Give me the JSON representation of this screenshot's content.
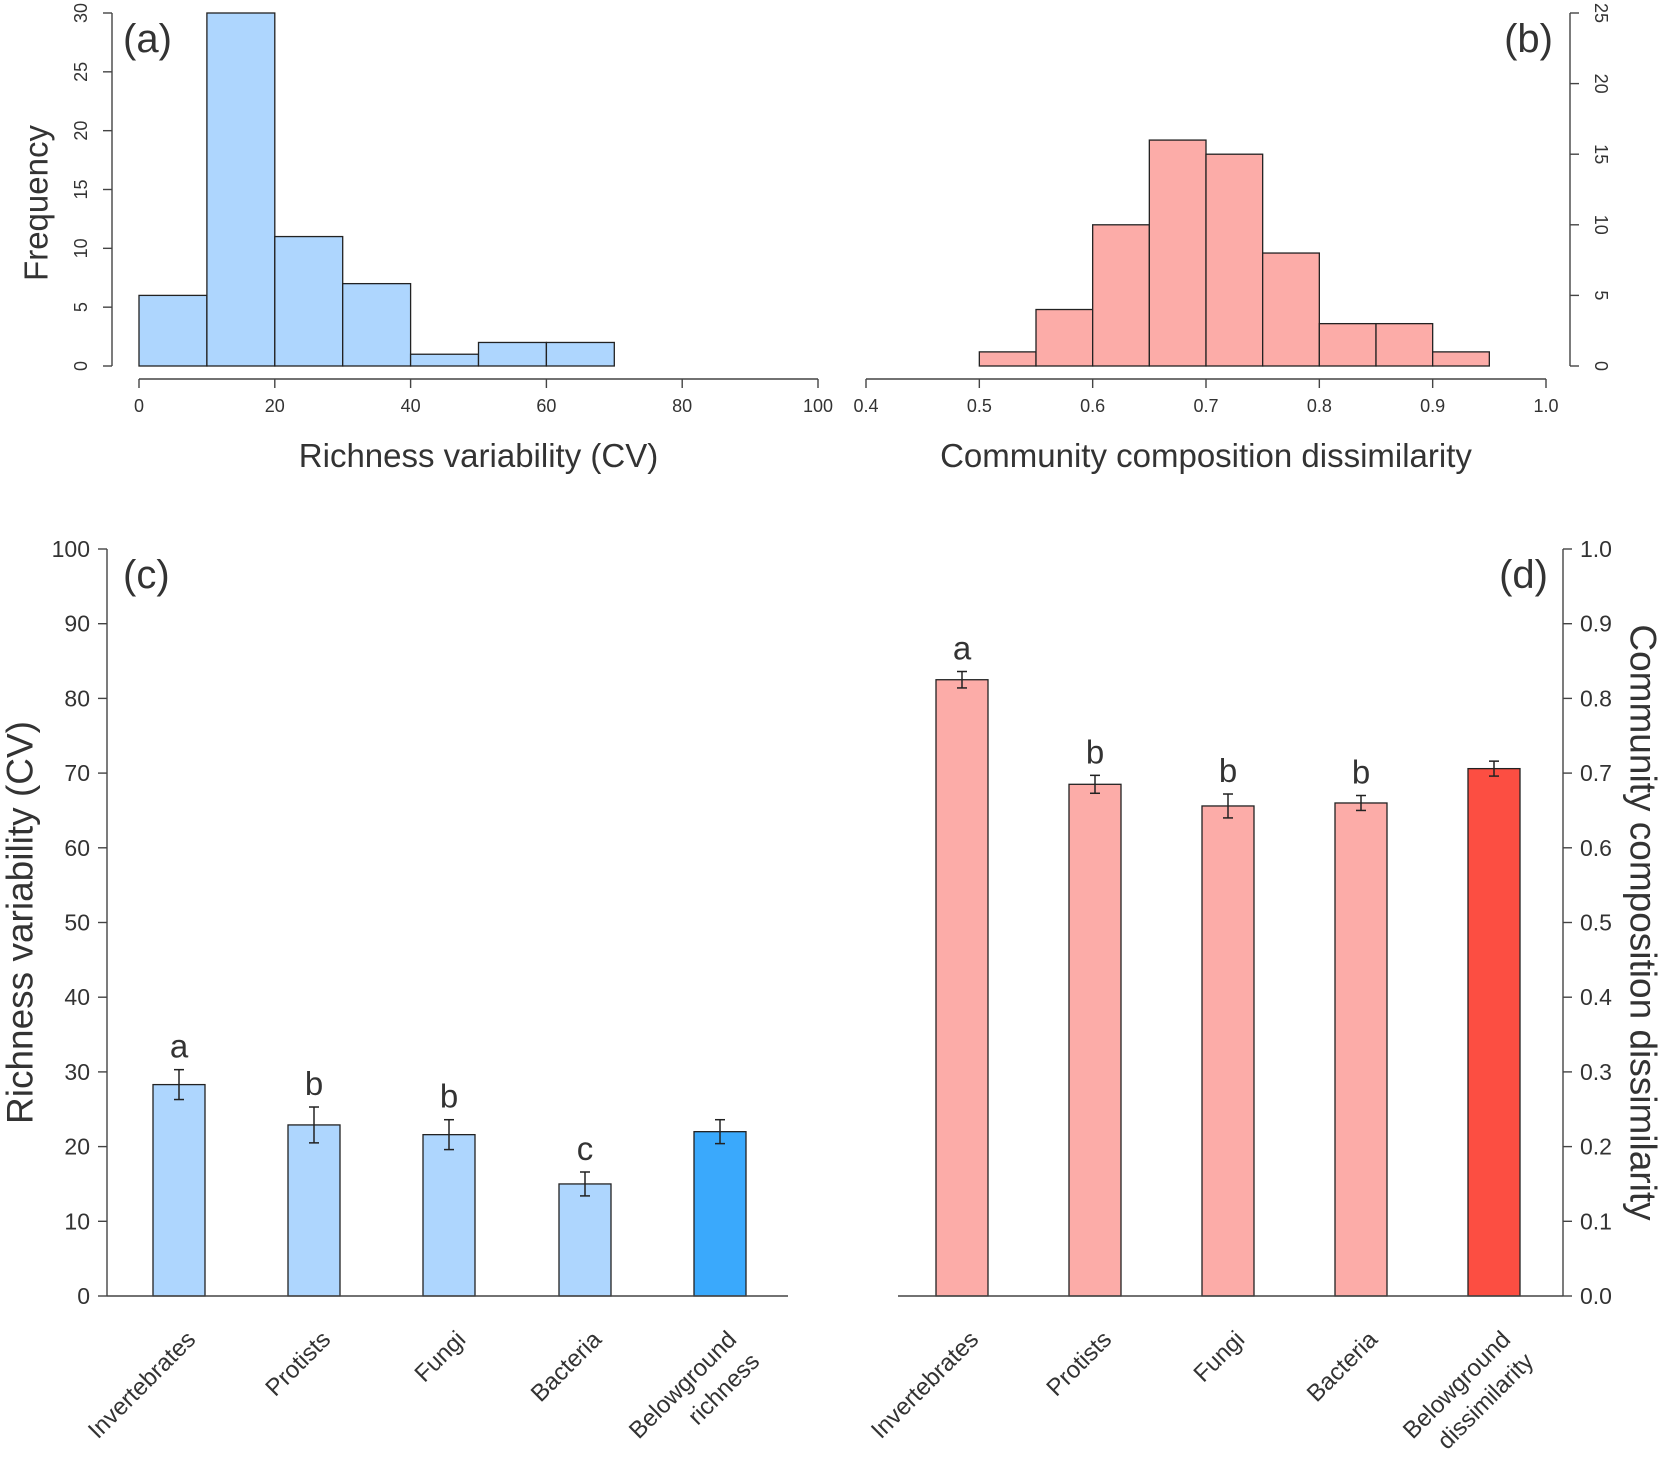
{
  "colors": {
    "light_blue": "#AED6FE",
    "blue": "#3AA9FC",
    "light_red": "#FCACA8",
    "red": "#FC4E42",
    "outline": "#222222",
    "axis": "#444444",
    "text": "#333333"
  },
  "chart_data": [
    {
      "panel": "(a)",
      "type": "bar",
      "subtype": "histogram",
      "bins": [
        [
          0,
          10
        ],
        [
          10,
          20
        ],
        [
          20,
          30
        ],
        [
          30,
          40
        ],
        [
          40,
          50
        ],
        [
          50,
          60
        ],
        [
          60,
          70
        ]
      ],
      "values": [
        6,
        30,
        11,
        7,
        1,
        2,
        2
      ],
      "xlim": [
        0,
        100
      ],
      "ylim": [
        0,
        30
      ],
      "xticks": [
        "0",
        "20",
        "40",
        "60",
        "80",
        "100"
      ],
      "yticks": [
        "0",
        "5",
        "10",
        "15",
        "20",
        "25",
        "30"
      ],
      "xlabel": "Richness variability (CV)",
      "ylabel": "Frequency",
      "y_axis": "left"
    },
    {
      "panel": "(b)",
      "type": "bar",
      "subtype": "histogram",
      "bins": [
        [
          0.5,
          0.55
        ],
        [
          0.55,
          0.6
        ],
        [
          0.6,
          0.65
        ],
        [
          0.65,
          0.7
        ],
        [
          0.7,
          0.75
        ],
        [
          0.75,
          0.8
        ],
        [
          0.8,
          0.85
        ],
        [
          0.85,
          0.9
        ],
        [
          0.9,
          0.95
        ]
      ],
      "values": [
        1,
        4,
        10,
        16,
        15,
        8,
        3,
        3,
        1
      ],
      "xlim": [
        0.4,
        1.0
      ],
      "ylim": [
        0,
        25
      ],
      "xticks": [
        "0.4",
        "0.5",
        "0.6",
        "0.7",
        "0.8",
        "0.9",
        "1.0"
      ],
      "yticks": [
        "0",
        "5",
        "10",
        "15",
        "20",
        "25"
      ],
      "xlabel": "Community composition dissimilarity",
      "ylabel": "",
      "y_axis": "right"
    },
    {
      "panel": "(c)",
      "type": "bar",
      "categories": [
        [
          "Invertebrates"
        ],
        [
          "Protists"
        ],
        [
          "Fungi"
        ],
        [
          "Bacteria"
        ],
        [
          "Belowground",
          "richness"
        ]
      ],
      "values": [
        28.3,
        22.9,
        21.6,
        15.0,
        22.0
      ],
      "errors": [
        2.0,
        2.4,
        2.0,
        1.6,
        1.6
      ],
      "letters": [
        "a",
        "b",
        "b",
        "c",
        ""
      ],
      "ylim": [
        0,
        100
      ],
      "yticks": [
        "0",
        "10",
        "20",
        "30",
        "40",
        "50",
        "60",
        "70",
        "80",
        "90",
        "100"
      ],
      "xlabel": "",
      "ylabel": "Richness variability (CV)",
      "y_axis": "left"
    },
    {
      "panel": "(d)",
      "type": "bar",
      "categories": [
        [
          "Invertebrates"
        ],
        [
          "Protists"
        ],
        [
          "Fungi"
        ],
        [
          "Bacteria"
        ],
        [
          "Belowground",
          "dissimilarity"
        ]
      ],
      "values": [
        0.825,
        0.685,
        0.656,
        0.66,
        0.706
      ],
      "errors": [
        0.011,
        0.012,
        0.016,
        0.01,
        0.01
      ],
      "letters": [
        "a",
        "b",
        "b",
        "b",
        ""
      ],
      "ylim": [
        0,
        1.0
      ],
      "yticks": [
        "0.0",
        "0.1",
        "0.2",
        "0.3",
        "0.4",
        "0.5",
        "0.6",
        "0.7",
        "0.8",
        "0.9",
        "1.0"
      ],
      "xlabel": "",
      "ylabel": "Community composition dissimilarity",
      "y_axis": "right"
    }
  ]
}
